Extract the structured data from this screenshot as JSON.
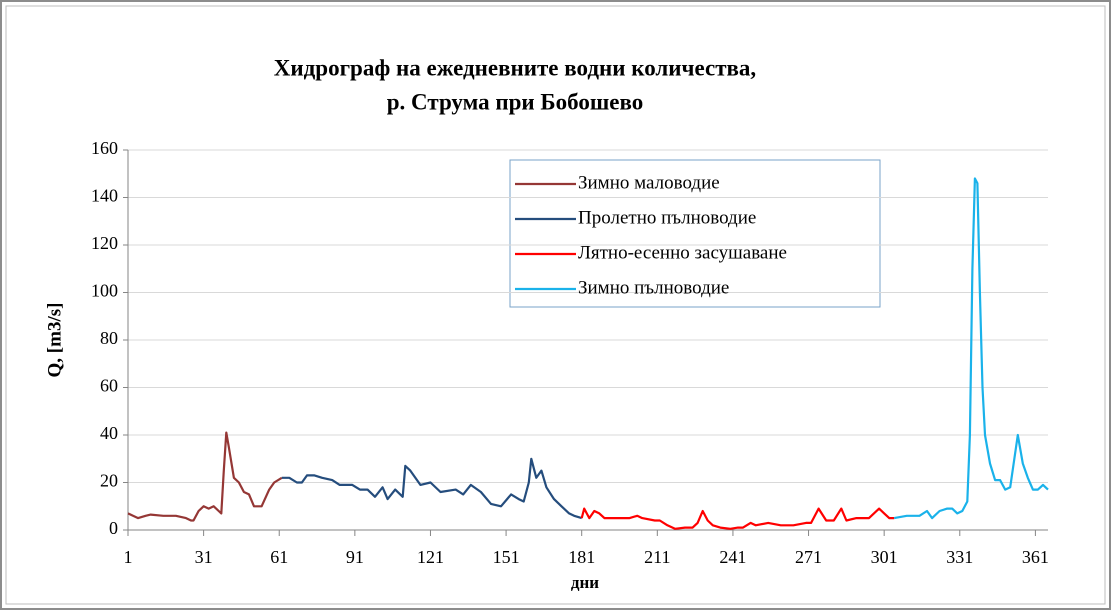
{
  "chart_data": {
    "type": "line",
    "title": "Хидрограф на ежедневните водни количества,",
    "subtitle": "р. Струма  при Бобошево",
    "y_label": "Q, [m3/s]",
    "x_label": "дни",
    "xlim": [
      1,
      366
    ],
    "xticks": [
      1,
      31,
      61,
      91,
      121,
      151,
      181,
      211,
      241,
      271,
      301,
      331,
      361
    ],
    "ylim": [
      0,
      160
    ],
    "yticks": [
      0,
      20,
      40,
      60,
      80,
      100,
      120,
      140,
      160
    ],
    "grid": true,
    "legend": "top-center",
    "series": [
      {
        "name": "Зимно маловодие",
        "color": "#953735",
        "x": [
          1,
          3,
          5,
          8,
          10,
          15,
          20,
          24,
          26,
          27,
          29,
          31,
          33,
          35,
          37,
          38,
          39,
          40,
          41,
          43,
          45,
          47,
          49,
          51,
          54,
          57,
          59,
          62
        ],
        "values": [
          7,
          6,
          5,
          6,
          6.5,
          6,
          6,
          5,
          4,
          4,
          8,
          10,
          9,
          10,
          8,
          7,
          25,
          41,
          35,
          22,
          20,
          16,
          15,
          10,
          10,
          17,
          20,
          22
        ]
      },
      {
        "name": "Пролетно пълноводие",
        "color": "#254d7d",
        "x": [
          62,
          65,
          68,
          70,
          72,
          75,
          78,
          82,
          85,
          90,
          93,
          96,
          99,
          102,
          104,
          107,
          110,
          111,
          113,
          117,
          121,
          125,
          131,
          134,
          137,
          141,
          145,
          149,
          153,
          156,
          158,
          160,
          161,
          163,
          165,
          167,
          170,
          173,
          176,
          178,
          181
        ],
        "values": [
          22,
          22,
          20,
          20,
          23,
          23,
          22,
          21,
          19,
          19,
          17,
          17,
          14,
          18,
          13,
          17,
          14,
          27,
          25,
          19,
          20,
          16,
          17,
          15,
          19,
          16,
          11,
          10,
          15,
          13,
          12,
          20,
          30,
          22,
          25,
          18,
          13,
          10,
          7,
          6,
          5
        ]
      },
      {
        "name": "Лятно-есенно засушаване",
        "color": "#ff0000",
        "x": [
          181,
          182,
          184,
          186,
          188,
          190,
          195,
          200,
          203,
          205,
          210,
          212,
          215,
          218,
          222,
          225,
          227,
          229,
          231,
          233,
          236,
          240,
          243,
          245,
          248,
          250,
          255,
          260,
          265,
          270,
          272,
          275,
          278,
          281,
          284,
          286,
          290,
          295,
          299,
          301,
          303,
          305
        ],
        "values": [
          5,
          9,
          5,
          8,
          7,
          5,
          5,
          5,
          6,
          5,
          4,
          4,
          2,
          0.5,
          1,
          1,
          3,
          8,
          4,
          2,
          1,
          0.5,
          1,
          1,
          3,
          2,
          3,
          2,
          2,
          3,
          3,
          9,
          4,
          4,
          9,
          4,
          5,
          5,
          9,
          7,
          5,
          5
        ]
      },
      {
        "name": "Зимно пълноводие",
        "color": "#1ab2ea",
        "x": [
          305,
          310,
          315,
          318,
          320,
          323,
          326,
          328,
          330,
          332,
          334,
          335,
          336,
          337,
          338,
          339,
          340,
          341,
          343,
          345,
          347,
          349,
          351,
          354,
          356,
          358,
          360,
          362,
          364,
          366
        ],
        "values": [
          5,
          6,
          6,
          8,
          5,
          8,
          9,
          9,
          7,
          8,
          12,
          40,
          110,
          148,
          146,
          100,
          60,
          40,
          28,
          21,
          21,
          17,
          18,
          40,
          28,
          22,
          17,
          17,
          19,
          17
        ]
      }
    ]
  }
}
